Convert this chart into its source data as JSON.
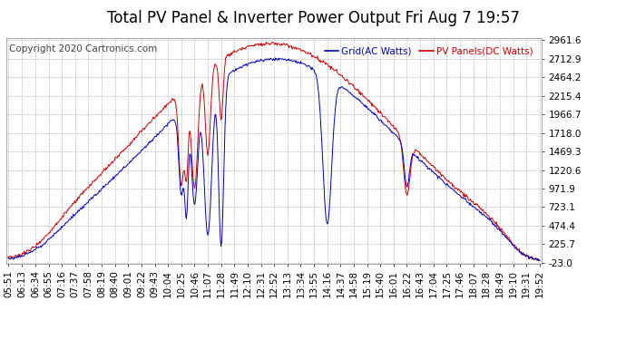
{
  "title": "Total PV Panel & Inverter Power Output Fri Aug 7 19:57",
  "copyright": "Copyright 2020 Cartronics.com",
  "legend_blue": "Grid(AC Watts)",
  "legend_red": "PV Panels(DC Watts)",
  "yticks": [
    2961.6,
    2712.9,
    2464.2,
    2215.4,
    1966.7,
    1718.0,
    1469.3,
    1220.6,
    971.9,
    723.1,
    474.4,
    225.7,
    -23.0
  ],
  "ymin": -23.0,
  "ymax": 2961.6,
  "background_color": "#ffffff",
  "plot_bg_color": "#ffffff",
  "grid_color": "#bbbbbb",
  "line_color_blue": "#0000bb",
  "line_color_red": "#cc0000",
  "title_color": "#000000",
  "title_fontsize": 12,
  "copyright_fontsize": 7.5,
  "tick_label_fontsize": 7.5,
  "xtick_labels": [
    "05:51",
    "06:13",
    "06:34",
    "06:55",
    "07:16",
    "07:37",
    "07:58",
    "08:19",
    "08:40",
    "09:01",
    "09:22",
    "09:43",
    "10:04",
    "10:25",
    "10:46",
    "11:07",
    "11:28",
    "11:49",
    "12:10",
    "12:31",
    "12:52",
    "13:13",
    "13:34",
    "13:55",
    "14:16",
    "14:37",
    "14:58",
    "15:19",
    "15:40",
    "16:01",
    "16:22",
    "16:43",
    "17:04",
    "17:25",
    "17:46",
    "18:07",
    "18:28",
    "18:49",
    "19:10",
    "19:31",
    "19:52"
  ]
}
